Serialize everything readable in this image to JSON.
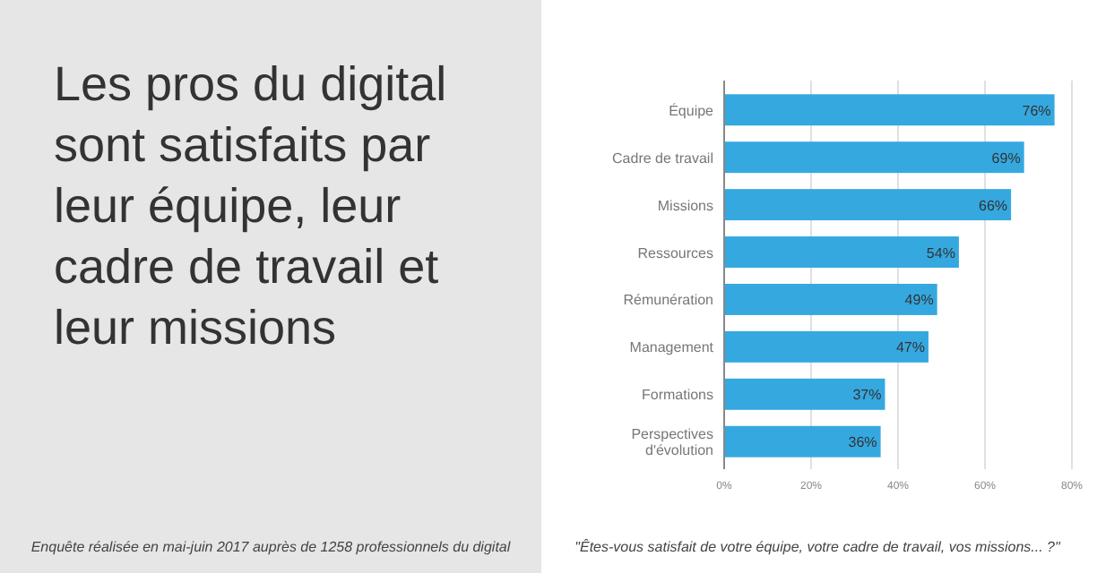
{
  "chart_data": {
    "type": "bar",
    "orientation": "horizontal",
    "title": "Les pros du digital sont satisfaits par leur équipe, leur cadre de travail et leur missions",
    "categories": [
      "Équipe",
      "Cadre de travail",
      "Missions",
      "Ressources",
      "Rémunération",
      "Management",
      "Formations",
      "Perspectives d'évolution"
    ],
    "values": [
      76,
      69,
      66,
      54,
      49,
      47,
      37,
      36
    ],
    "value_labels": [
      "76%",
      "69%",
      "66%",
      "54%",
      "49%",
      "47%",
      "37%",
      "36%"
    ],
    "color": "#35a8e0",
    "xlim": [
      0,
      80
    ],
    "xticks": [
      {
        "value": 0,
        "label": "0%"
      },
      {
        "value": 20,
        "label": "20%"
      },
      {
        "value": 40,
        "label": "40%"
      },
      {
        "value": 60,
        "label": "60%"
      },
      {
        "value": 80,
        "label": "80%"
      }
    ],
    "grid": "x",
    "annotations": [
      "Enquête réalisée en mai-juin 2017 auprès de 1258 professionnels du digital",
      "\"Êtes-vous satisfait de votre équipe, votre cadre de travail, vos missions... ?\""
    ]
  }
}
